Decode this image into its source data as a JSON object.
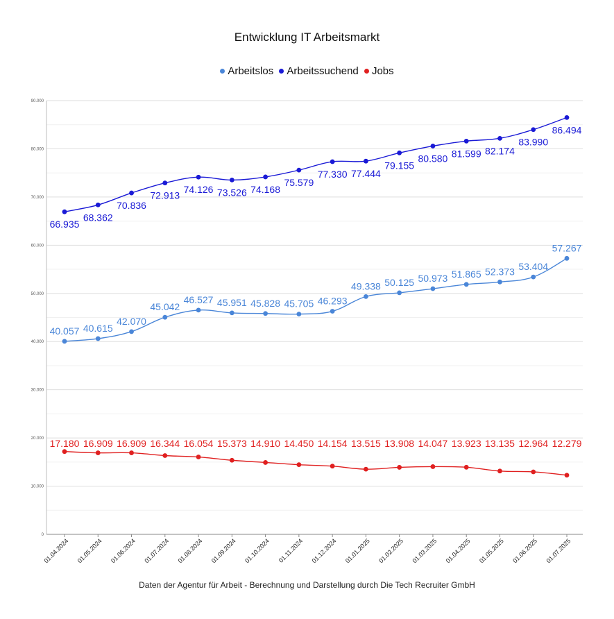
{
  "chart_data": {
    "type": "line",
    "title": "Entwicklung IT Arbeitsmarkt",
    "categories": [
      "01.04.2024",
      "01.05.2024",
      "01.06.2024",
      "01.07.2024",
      "01.08.2024",
      "01.09.2024",
      "01.10.2024",
      "01.11.2024",
      "01.12.2024",
      "01.01.2025",
      "01.02.2025",
      "01.03.2025",
      "01.04.2025",
      "01.05.2025",
      "01.06.2025",
      "01.07.2025"
    ],
    "series": [
      {
        "name": "Arbeitslos",
        "color": "#4a86d8",
        "values": [
          40057,
          40615,
          42070,
          45042,
          46527,
          45951,
          45828,
          45705,
          46293,
          49338,
          50125,
          50973,
          51865,
          52373,
          53404,
          57267
        ],
        "labels": [
          "40.057",
          "40.615",
          "42.070",
          "45.042",
          "46.527",
          "45.951",
          "45.828",
          "45.705",
          "46.293",
          "49.338",
          "50.125",
          "50.973",
          "51.865",
          "52.373",
          "53.404",
          "57.267"
        ]
      },
      {
        "name": "Arbeitssuchend",
        "color": "#1a1ad6",
        "values": [
          66935,
          68362,
          70836,
          72913,
          74126,
          73526,
          74168,
          75579,
          77330,
          77444,
          79155,
          80580,
          81599,
          82174,
          83990,
          86494
        ],
        "labels": [
          "66.935",
          "68.362",
          "70.836",
          "72.913",
          "74.126",
          "73.526",
          "74.168",
          "75.579",
          "77.330",
          "77.444",
          "79.155",
          "80.580",
          "81.599",
          "82.174",
          "83.990",
          "86.494"
        ]
      },
      {
        "name": "Jobs",
        "color": "#e02020",
        "values": [
          17180,
          16909,
          16909,
          16344,
          16054,
          15373,
          14910,
          14450,
          14154,
          13515,
          13908,
          14047,
          13923,
          13135,
          12964,
          12279
        ],
        "labels": [
          "17.180",
          "16.909",
          "16.909",
          "16.344",
          "16.054",
          "15.373",
          "14.910",
          "14.450",
          "14.154",
          "13.515",
          "13.908",
          "14.047",
          "13.923",
          "13.135",
          "12.964",
          "12.279"
        ]
      }
    ],
    "ylim": [
      0,
      90000
    ],
    "yticks": [
      0,
      10000,
      20000,
      30000,
      40000,
      50000,
      60000,
      70000,
      80000,
      90000
    ],
    "ytick_labels": [
      "0",
      "10.000",
      "20.000",
      "30.000",
      "40.000",
      "50.000",
      "60.000",
      "70.000",
      "80.000",
      "90.000"
    ],
    "grid": true,
    "legend_position": "top-center",
    "xlabel": "",
    "ylabel": ""
  },
  "footer": {
    "source_note": "Daten der Agentur für Arbeit - Berechnung und Darstellung durch Die Tech Recruiter GmbH"
  }
}
